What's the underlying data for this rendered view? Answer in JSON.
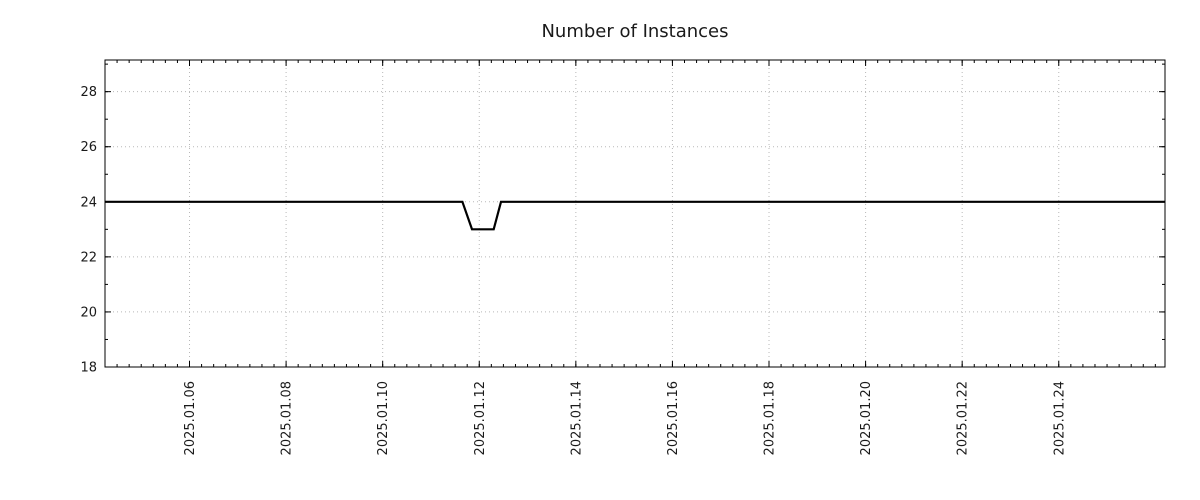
{
  "chart_data": {
    "type": "line",
    "title": "Number of Instances",
    "x_unit": "day of January 2025",
    "x_ticks": [
      6,
      8,
      10,
      12,
      14,
      16,
      18,
      20,
      22,
      24
    ],
    "x_tick_labels": [
      "2025.01.06",
      "2025.01.08",
      "2025.01.10",
      "2025.01.12",
      "2025.01.14",
      "2025.01.16",
      "2025.01.18",
      "2025.01.20",
      "2025.01.22",
      "2025.01.24"
    ],
    "y_ticks": [
      18,
      20,
      22,
      24,
      26,
      28
    ],
    "y_tick_labels": [
      "18",
      "20",
      "22",
      "24",
      "26",
      "28"
    ],
    "xlim": [
      4.25,
      26.2
    ],
    "ylim": [
      18,
      29.15
    ],
    "x_minor_step": 0.25,
    "y_minor_step": 1,
    "grid": "dotted",
    "legend": "none",
    "xlabel": "",
    "ylabel": "",
    "series": [
      {
        "name": "instances",
        "color": "#000000",
        "points": [
          [
            4.25,
            24
          ],
          [
            11.65,
            24
          ],
          [
            11.85,
            23
          ],
          [
            12.3,
            23
          ],
          [
            12.45,
            24
          ],
          [
            26.2,
            24
          ]
        ]
      }
    ]
  }
}
